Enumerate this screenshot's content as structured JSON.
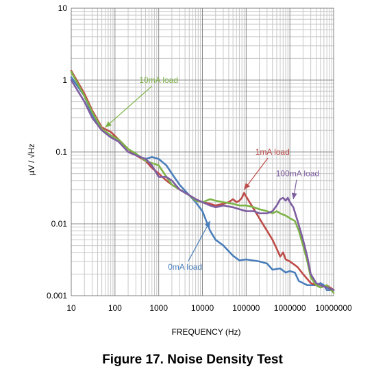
{
  "caption": "Figure 17. Noise Density Test",
  "chart_data": {
    "type": "line",
    "xscale": "log",
    "yscale": "log",
    "xlim": [
      10,
      10000000
    ],
    "ylim": [
      0.001,
      10
    ],
    "xlabel": "FREQUENCY (Hz)",
    "ylabel": "µV / √Hz",
    "x_ticks": [
      "10",
      "100",
      "1000",
      "10000",
      "100000",
      "1000000",
      "10000000"
    ],
    "y_ticks": [
      "10",
      "1",
      "0.1",
      "0.01",
      "0.001"
    ],
    "grid": true,
    "series": [
      {
        "name": "0mA load",
        "color": "#4a7ebb",
        "x": [
          10,
          20,
          30,
          50,
          80,
          120,
          200,
          300,
          500,
          700,
          1000,
          1500,
          2000,
          3000,
          5000,
          7000,
          10000,
          15000,
          20000,
          30000,
          50000,
          70000,
          100000,
          200000,
          300000,
          400000,
          600000,
          800000,
          1000000,
          1300000,
          1600000,
          2000000,
          2500000,
          3000000,
          4000000,
          5000000,
          6000000,
          7000000,
          8000000,
          10000000
        ],
        "y": [
          1.1,
          0.6,
          0.33,
          0.21,
          0.17,
          0.15,
          0.11,
          0.09,
          0.08,
          0.085,
          0.08,
          0.065,
          0.05,
          0.035,
          0.025,
          0.02,
          0.015,
          0.008,
          0.006,
          0.005,
          0.0036,
          0.0031,
          0.0032,
          0.003,
          0.0028,
          0.0023,
          0.0024,
          0.0021,
          0.0022,
          0.0021,
          0.0016,
          0.0015,
          0.0014,
          0.0014,
          0.0014,
          0.0015,
          0.0014,
          0.0012,
          0.0012,
          0.0012
        ]
      },
      {
        "name": "1mA load",
        "color": "#be4b48",
        "x": [
          10,
          20,
          30,
          50,
          80,
          120,
          200,
          300,
          500,
          700,
          1000,
          1500,
          2000,
          3000,
          5000,
          7000,
          10000,
          15000,
          20000,
          30000,
          40000,
          50000,
          60000,
          70000,
          80000,
          90000,
          100000,
          120000,
          150000,
          200000,
          300000,
          400000,
          500000,
          600000,
          700000,
          800000,
          1000000,
          1500000,
          2000000,
          3000000,
          4000000,
          5000000,
          7000000,
          10000000
        ],
        "y": [
          1.35,
          0.65,
          0.38,
          0.22,
          0.19,
          0.15,
          0.11,
          0.09,
          0.075,
          0.06,
          0.05,
          0.04,
          0.035,
          0.03,
          0.025,
          0.022,
          0.02,
          0.019,
          0.018,
          0.019,
          0.02,
          0.022,
          0.02,
          0.021,
          0.023,
          0.027,
          0.024,
          0.02,
          0.016,
          0.012,
          0.008,
          0.006,
          0.0045,
          0.0035,
          0.004,
          0.0032,
          0.003,
          0.0025,
          0.002,
          0.0015,
          0.0014,
          0.0013,
          0.0014,
          0.0012
        ]
      },
      {
        "name": "10mA load",
        "color": "#7eb348",
        "x": [
          10,
          20,
          30,
          50,
          80,
          120,
          200,
          300,
          500,
          700,
          1000,
          1500,
          2000,
          3000,
          5000,
          7000,
          10000,
          15000,
          20000,
          30000,
          50000,
          70000,
          100000,
          150000,
          200000,
          300000,
          400000,
          500000,
          600000,
          800000,
          1000000,
          1300000,
          1600000,
          2000000,
          2500000,
          3000000,
          4000000,
          5000000,
          7000000,
          10000000
        ],
        "y": [
          1.3,
          0.6,
          0.36,
          0.21,
          0.17,
          0.15,
          0.11,
          0.095,
          0.075,
          0.07,
          0.065,
          0.045,
          0.035,
          0.03,
          0.025,
          0.021,
          0.02,
          0.022,
          0.021,
          0.02,
          0.019,
          0.018,
          0.018,
          0.017,
          0.016,
          0.015,
          0.014,
          0.015,
          0.014,
          0.013,
          0.012,
          0.011,
          0.008,
          0.005,
          0.003,
          0.0018,
          0.0014,
          0.0013,
          0.0014,
          0.0011
        ]
      },
      {
        "name": "100mA load",
        "color": "#7d5da0",
        "x": [
          10,
          20,
          30,
          50,
          80,
          120,
          200,
          300,
          500,
          700,
          1000,
          1500,
          2000,
          3000,
          5000,
          7000,
          10000,
          15000,
          20000,
          30000,
          50000,
          70000,
          100000,
          150000,
          200000,
          300000,
          400000,
          500000,
          600000,
          700000,
          800000,
          900000,
          1000000,
          1200000,
          1500000,
          2000000,
          2500000,
          3000000,
          4000000,
          5000000,
          7000000,
          10000000
        ],
        "y": [
          1.0,
          0.5,
          0.3,
          0.2,
          0.16,
          0.14,
          0.1,
          0.09,
          0.08,
          0.065,
          0.045,
          0.045,
          0.04,
          0.03,
          0.025,
          0.022,
          0.02,
          0.018,
          0.017,
          0.018,
          0.017,
          0.016,
          0.015,
          0.015,
          0.014,
          0.014,
          0.015,
          0.018,
          0.022,
          0.023,
          0.021,
          0.023,
          0.02,
          0.017,
          0.011,
          0.006,
          0.0035,
          0.002,
          0.0015,
          0.0014,
          0.0013,
          0.0012
        ]
      }
    ],
    "annotations": [
      {
        "text": "10mA load",
        "color": "#7eb348",
        "x": 1000,
        "y": 1,
        "target_x": 60,
        "target_y": 0.22
      },
      {
        "text": "1mA load",
        "color": "#be4b48",
        "x": 400000,
        "y": 0.1,
        "target_x": 90000,
        "target_y": 0.03
      },
      {
        "text": "100mA load",
        "color": "#7d5da0",
        "x": 1500000,
        "y": 0.05,
        "target_x": 1200000,
        "target_y": 0.022
      },
      {
        "text": "0mA load",
        "color": "#4a7ebb",
        "x": 4000,
        "y": 0.0025,
        "target_x": 15000,
        "target_y": 0.011
      }
    ]
  }
}
